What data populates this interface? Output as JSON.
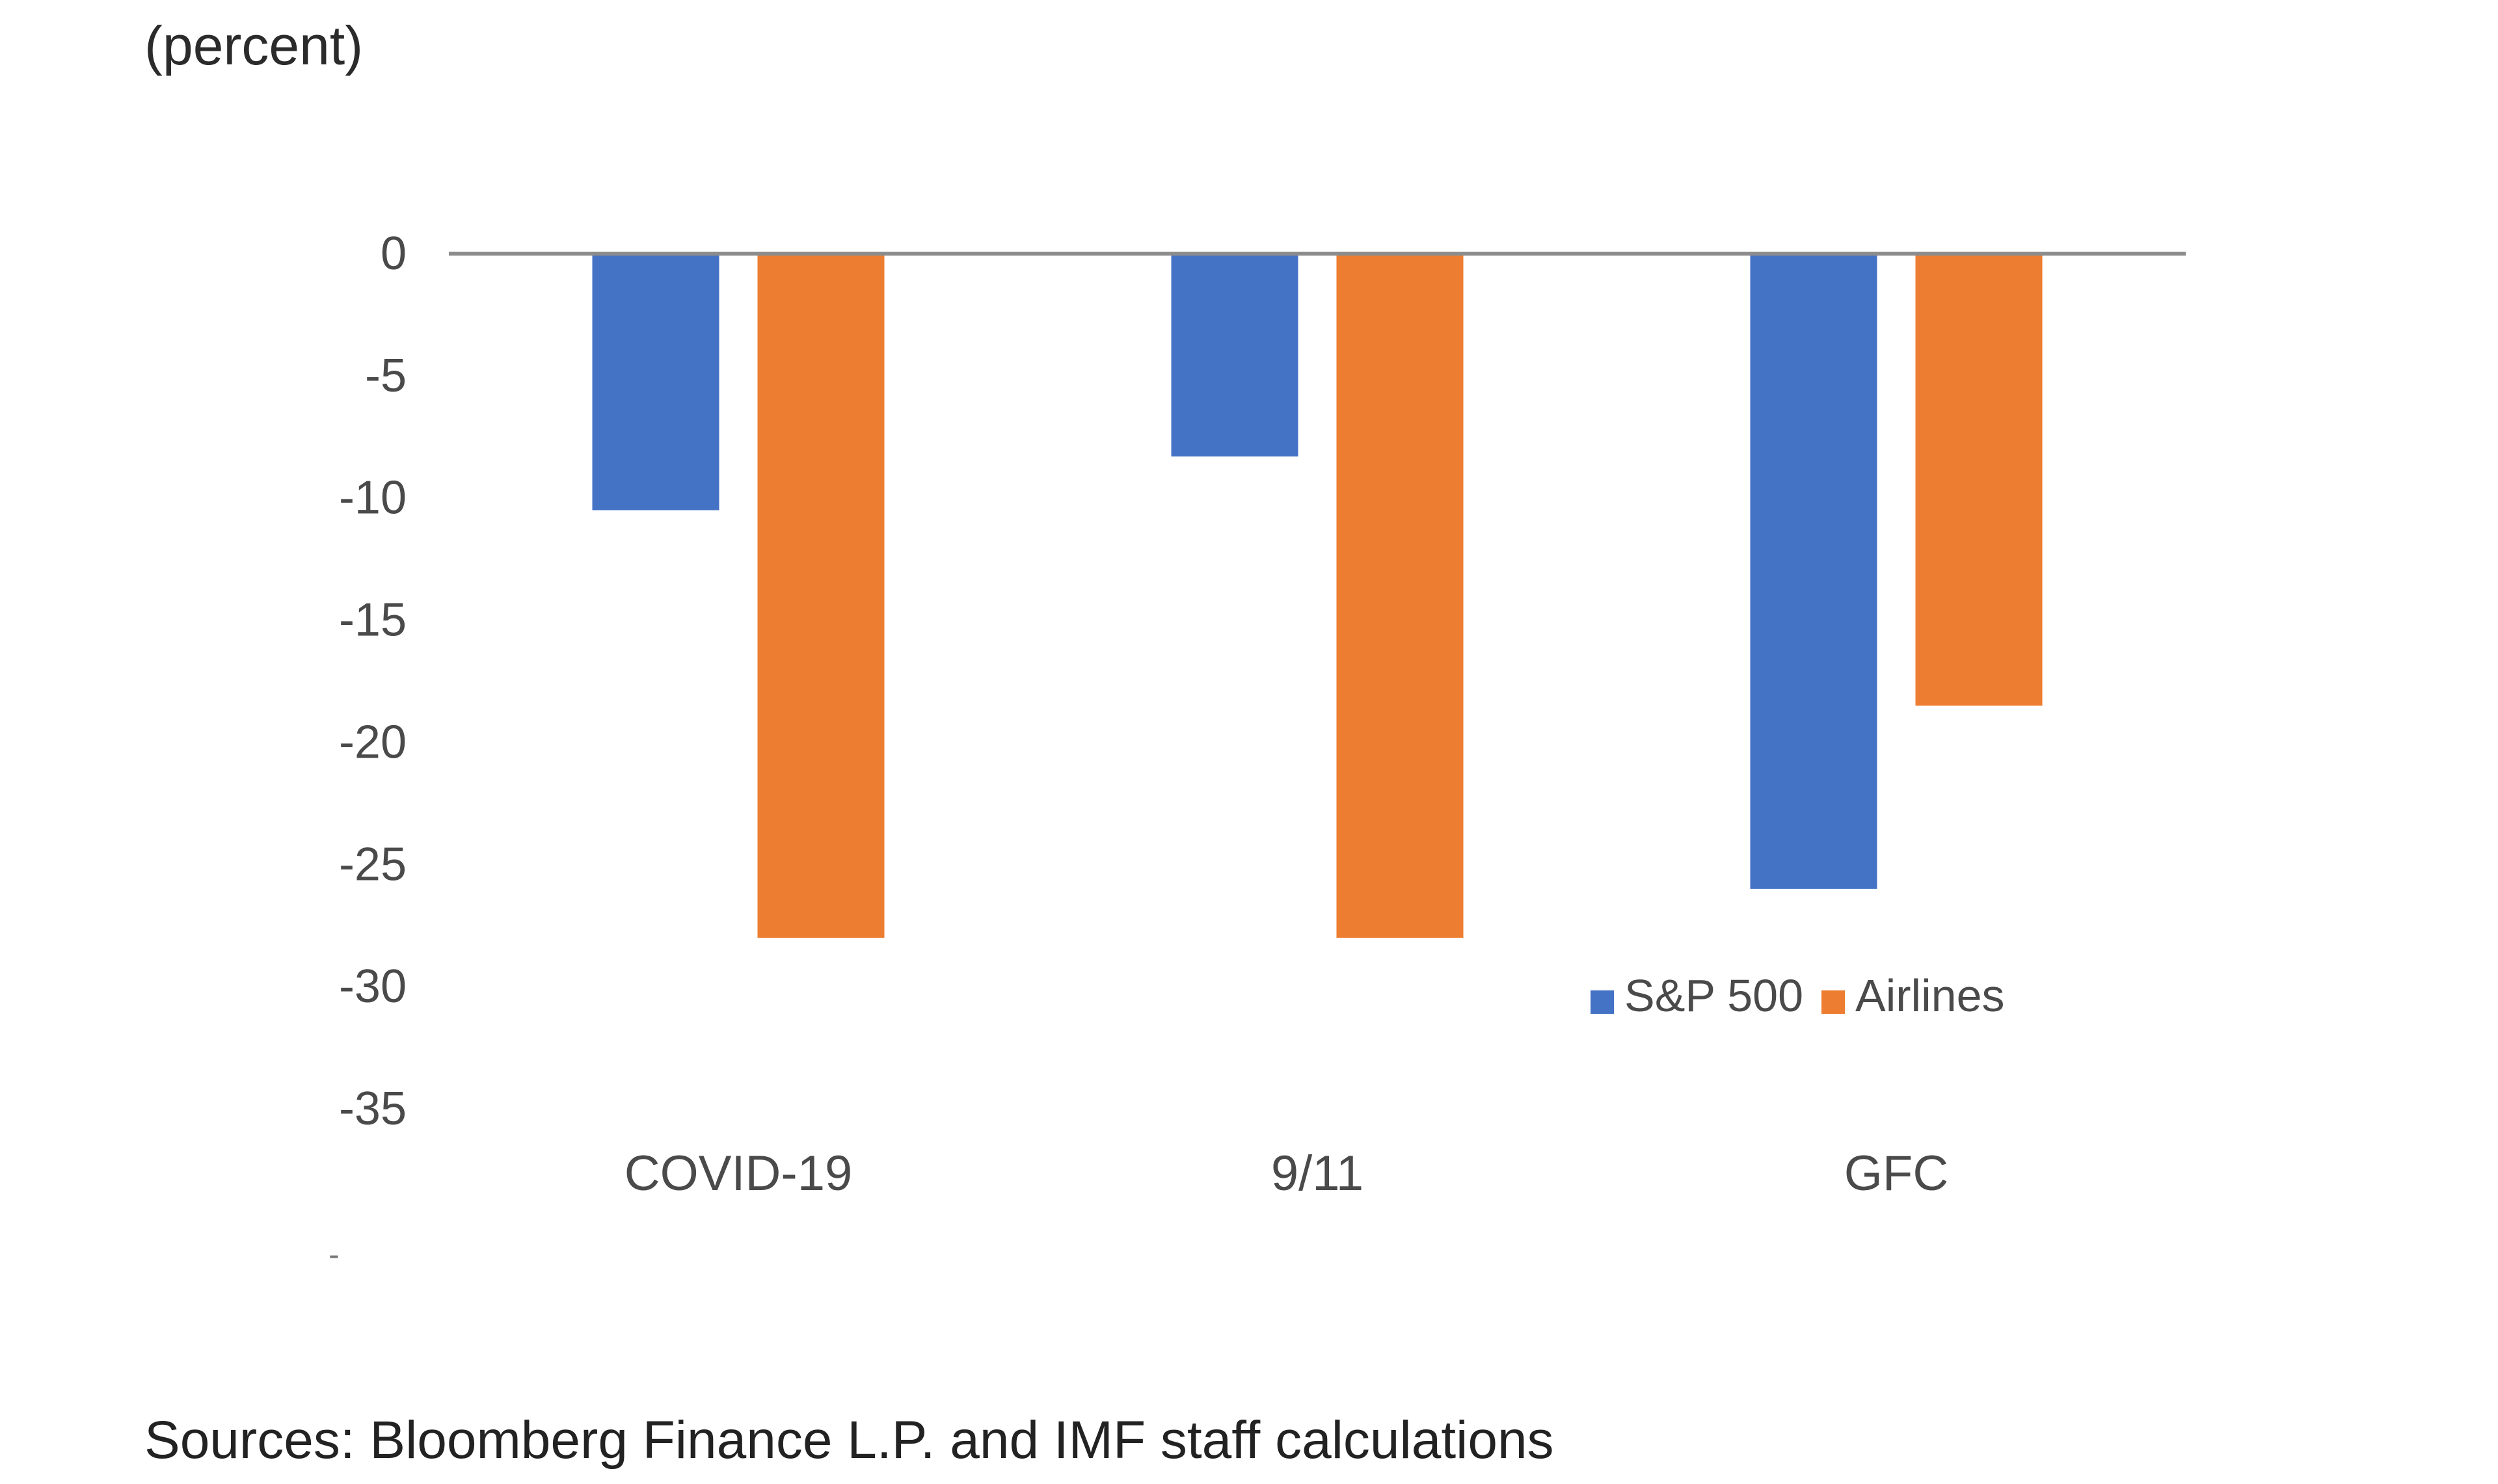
{
  "chart_data": {
    "type": "bar",
    "unit_label": "(percent)",
    "categories": [
      "COVID-19",
      "9/11",
      "GFC"
    ],
    "series": [
      {
        "name": "S&P 500",
        "color": "#4472c4",
        "values": [
          -10.5,
          -8.3,
          -26.0
        ]
      },
      {
        "name": "Airlines",
        "color": "#ed7d31",
        "values": [
          -28.0,
          -28.0,
          -18.5
        ]
      }
    ],
    "ylim": [
      -35,
      0
    ],
    "yticks": [
      0,
      -5,
      -10,
      -15,
      -20,
      -25,
      -30,
      -35
    ],
    "grid": false,
    "legend_position": "bottom-right"
  },
  "stray_mark": "-",
  "source": "Sources: Bloomberg Finance L.P. and IMF staff calculations"
}
